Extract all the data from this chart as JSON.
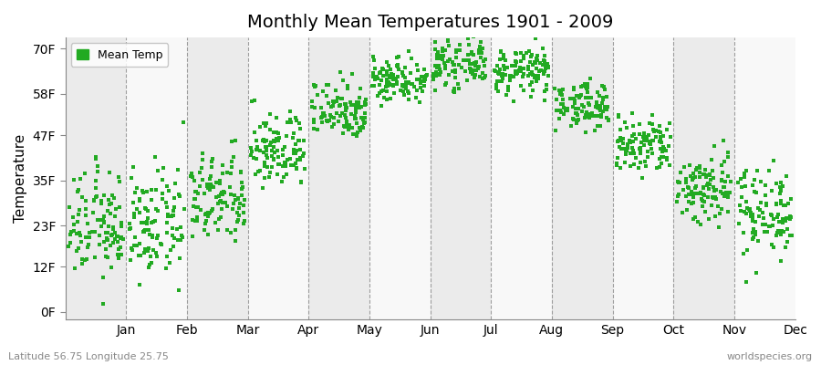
{
  "title": "Monthly Mean Temperatures 1901 - 2009",
  "ylabel": "Temperature",
  "xlabel_labels": [
    "Jan",
    "Feb",
    "Mar",
    "Apr",
    "May",
    "Jun",
    "Jul",
    "Aug",
    "Sep",
    "Oct",
    "Nov",
    "Dec"
  ],
  "ytick_labels": [
    "0F",
    "12F",
    "23F",
    "35F",
    "47F",
    "58F",
    "70F"
  ],
  "ytick_values": [
    0,
    12,
    23,
    35,
    47,
    58,
    70
  ],
  "ylim": [
    -2,
    73
  ],
  "legend_label": "Mean Temp",
  "dot_color": "#22aa22",
  "bg_color": "#ffffff",
  "band_color_odd": "#ebebeb",
  "band_color_even": "#f8f8f8",
  "footer_left": "Latitude 56.75 Longitude 25.75",
  "footer_right": "worldspecies.org",
  "num_years": 109,
  "means_F": [
    23,
    23,
    30,
    43,
    54,
    62,
    66,
    64,
    55,
    44,
    33,
    27
  ],
  "stds_F": [
    7,
    7,
    6,
    5,
    4,
    3,
    3,
    3,
    3,
    4,
    5,
    6
  ]
}
